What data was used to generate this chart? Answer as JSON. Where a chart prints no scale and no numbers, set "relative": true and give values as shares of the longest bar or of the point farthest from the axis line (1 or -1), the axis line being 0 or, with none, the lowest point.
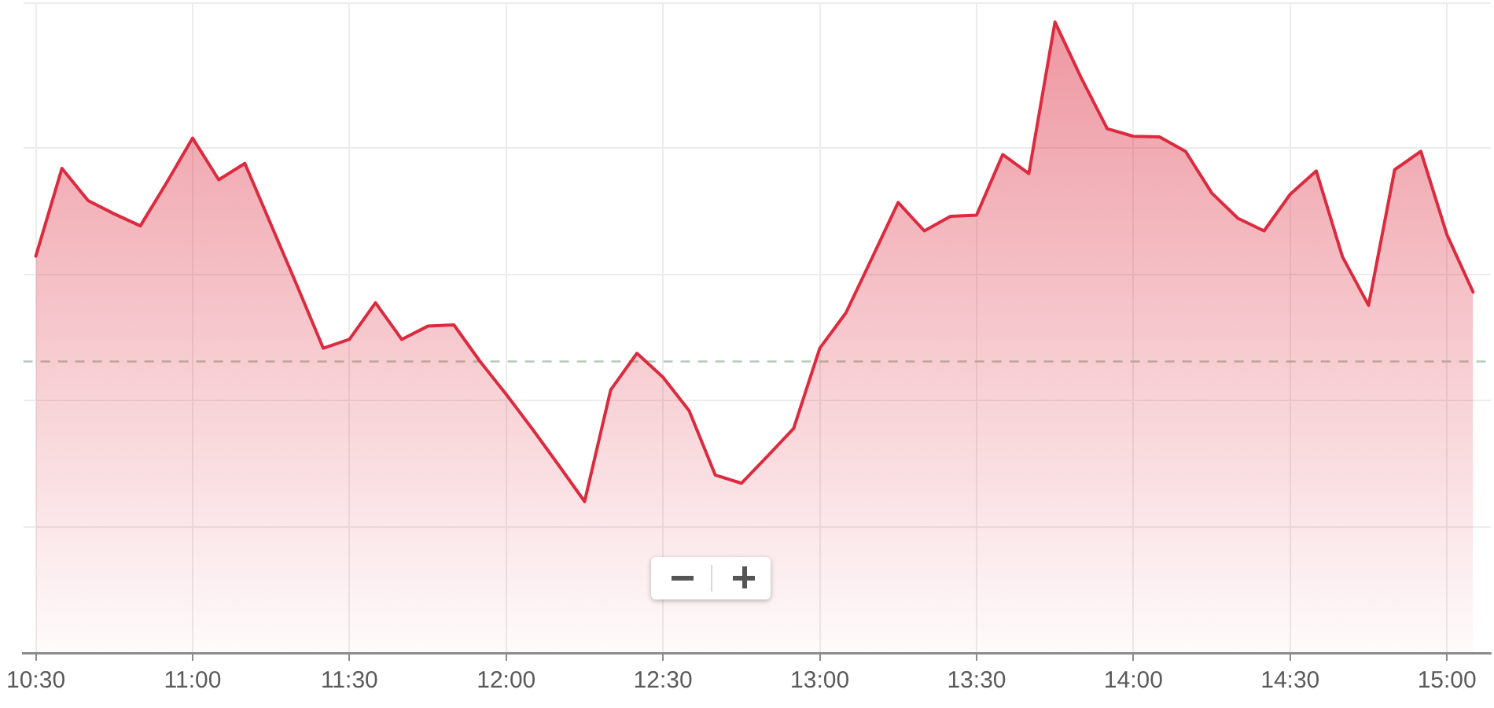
{
  "chart_data": {
    "type": "area",
    "relative": true,
    "x": [
      10.5,
      10.5833,
      10.6667,
      10.75,
      10.8333,
      10.9167,
      11,
      11.0833,
      11.1667,
      11.25,
      11.3333,
      11.4167,
      11.5,
      11.5833,
      11.6667,
      11.75,
      11.8333,
      11.9167,
      12,
      12.0833,
      12.1667,
      12.25,
      12.3333,
      12.4167,
      12.5,
      12.5833,
      12.6667,
      12.75,
      12.8333,
      12.9167,
      13,
      13.0833,
      13.1667,
      13.25,
      13.3333,
      13.4167,
      13.5,
      13.5833,
      13.6667,
      13.75,
      13.8333,
      13.9167,
      14,
      14.0833,
      14.1667,
      14.25,
      14.3333,
      14.4167,
      14.5,
      14.5833,
      14.6667,
      14.75,
      14.8333,
      14.9167,
      15,
      15.0833
    ],
    "series": [
      {
        "color": "#dc2a3e",
        "values": [
          0.629,
          0.768,
          0.717,
          0.696,
          0.677,
          0.745,
          0.816,
          0.75,
          0.776,
          0.679,
          0.582,
          0.483,
          0.497,
          0.555,
          0.497,
          0.518,
          0.52,
          0.462,
          0.41,
          0.355,
          0.298,
          0.24,
          0.417,
          0.475,
          0.437,
          0.384,
          0.282,
          0.269,
          0.312,
          0.356,
          0.483,
          0.539,
          0.626,
          0.714,
          0.669,
          0.692,
          0.694,
          0.79,
          0.76,
          1,
          0.912,
          0.831,
          0.819,
          0.818,
          0.795,
          0.729,
          0.689,
          0.669,
          0.727,
          0.764,
          0.628,
          0.551,
          0.766,
          0.795,
          0.663,
          0.572
        ]
      }
    ],
    "xlim": [
      10.46,
      15.14
    ],
    "xticks": [
      {
        "value": 10.5,
        "label": "10:30"
      },
      {
        "value": 11,
        "label": "11:00"
      },
      {
        "value": 11.5,
        "label": "11:30"
      },
      {
        "value": 12,
        "label": "12:00"
      },
      {
        "value": 12.5,
        "label": "12:30"
      },
      {
        "value": 13,
        "label": "13:00"
      },
      {
        "value": 13.5,
        "label": "13:30"
      },
      {
        "value": 14,
        "label": "14:00"
      },
      {
        "value": 14.5,
        "label": "14:30"
      },
      {
        "value": 15,
        "label": "15:00"
      }
    ],
    "grid": true,
    "ref_lines": [
      {
        "axis": "y",
        "value": 0.462,
        "color": "#b5cbb5",
        "line_style": "dashed"
      }
    ]
  }
}
